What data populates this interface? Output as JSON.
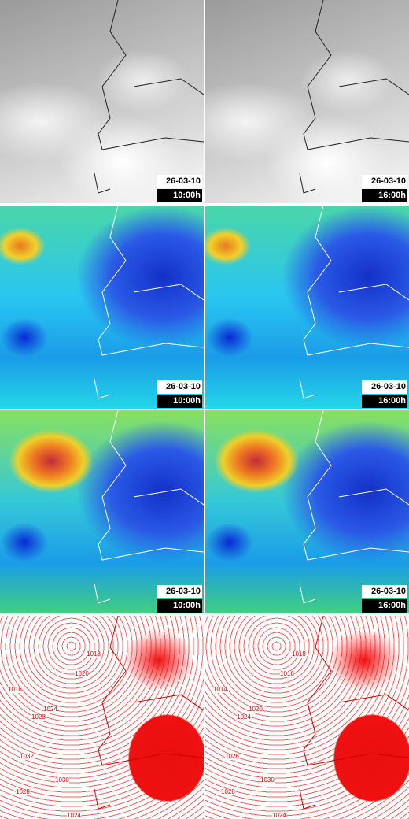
{
  "panels": [
    {
      "date": "26-03-10",
      "time": "10:00h"
    },
    {
      "date": "26-03-10",
      "time": "16:00h"
    },
    {
      "date": "26-03-10",
      "time": "10:00h"
    },
    {
      "date": "26-03-10",
      "time": "16:00h"
    },
    {
      "date": "26-03-10",
      "time": "10:00h"
    },
    {
      "date": "26-03-10",
      "time": "16:00h"
    },
    {
      "isobar_labels": [
        "1016",
        "1020",
        "1024",
        "1028",
        "1032",
        "1030",
        "1028",
        "1024",
        "1018"
      ]
    },
    {
      "isobar_labels": [
        "1014",
        "1016",
        "1020",
        "1024",
        "1028",
        "1030",
        "1028",
        "1024",
        "1018"
      ]
    }
  ]
}
